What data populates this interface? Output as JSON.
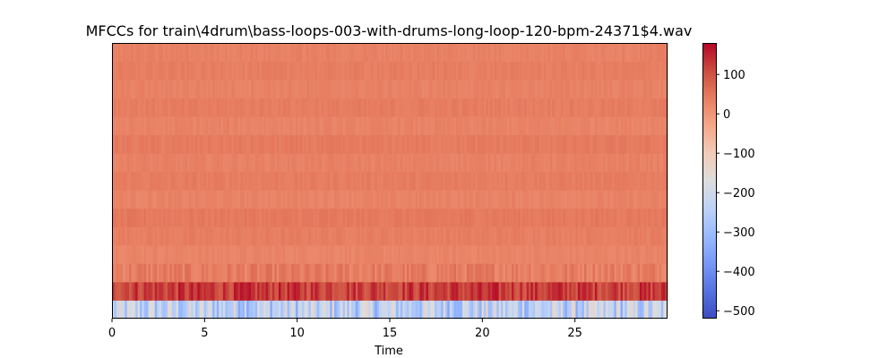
{
  "chart_data": {
    "type": "heatmap",
    "title": "MFCCs for train\\4drum\\bass-loops-003-with-drums-long-loop-120-bpm-24371$4.wav",
    "xlabel": "Time",
    "ylabel": "",
    "xlim": [
      0,
      30
    ],
    "x_ticks": [
      0,
      5,
      10,
      15,
      20,
      25
    ],
    "x_tick_labels": [
      "0",
      "5",
      "10",
      "15",
      "20",
      "25"
    ],
    "n_coefficients": 15,
    "n_frames": 260,
    "colormap": "coolwarm",
    "colorbar": {
      "vmin": -520,
      "vmax": 180,
      "ticks": [
        100,
        0,
        -100,
        -200,
        -300,
        -400,
        -500
      ],
      "tick_labels": [
        "100",
        "0",
        "−100",
        "−200",
        "−300",
        "−400",
        "−500"
      ]
    },
    "coefficient_rows": [
      {
        "index": 0,
        "mean": -240,
        "spread": 110
      },
      {
        "index": 1,
        "mean": 125,
        "spread": 45
      },
      {
        "index": 2,
        "mean": 40,
        "spread": 25
      },
      {
        "index": 3,
        "mean": 28,
        "spread": 8
      },
      {
        "index": 4,
        "mean": 38,
        "spread": 8
      },
      {
        "index": 5,
        "mean": 45,
        "spread": 8
      },
      {
        "index": 6,
        "mean": 30,
        "spread": 8
      },
      {
        "index": 7,
        "mean": 40,
        "spread": 8
      },
      {
        "index": 8,
        "mean": 33,
        "spread": 8
      },
      {
        "index": 9,
        "mean": 42,
        "spread": 8
      },
      {
        "index": 10,
        "mean": 30,
        "spread": 8
      },
      {
        "index": 11,
        "mean": 40,
        "spread": 8
      },
      {
        "index": 12,
        "mean": 32,
        "spread": 8
      },
      {
        "index": 13,
        "mean": 38,
        "spread": 8
      },
      {
        "index": 14,
        "mean": 33,
        "spread": 8
      }
    ]
  }
}
